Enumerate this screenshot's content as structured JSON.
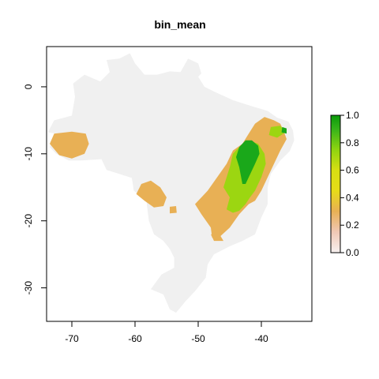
{
  "title": "bin_mean",
  "chart_data": {
    "type": "heatmap",
    "title": "bin_mean",
    "xlabel": "",
    "ylabel": "",
    "xlim": [
      -74,
      -32
    ],
    "ylim": [
      -35,
      6
    ],
    "x_ticks": [
      -70,
      -60,
      -50,
      -40
    ],
    "x_tick_labels": [
      "-70",
      "-60",
      "-50",
      "-40"
    ],
    "y_ticks": [
      0,
      -10,
      -20,
      -30
    ],
    "y_tick_labels": [
      "0",
      "-10",
      "-20",
      "-30"
    ],
    "grid": false,
    "background_region": {
      "name": "Brazil",
      "color": "#f0f0f0",
      "outline": [
        [
          -51.6,
          4.2
        ],
        [
          -50.0,
          3.5
        ],
        [
          -49.5,
          2.0
        ],
        [
          -50.0,
          1.5
        ],
        [
          -49.0,
          0.0
        ],
        [
          -47.5,
          -0.7
        ],
        [
          -44.5,
          -2.0
        ],
        [
          -41.5,
          -2.9
        ],
        [
          -39.0,
          -3.6
        ],
        [
          -37.5,
          -4.6
        ],
        [
          -35.7,
          -5.2
        ],
        [
          -35.0,
          -6.5
        ],
        [
          -34.8,
          -8.0
        ],
        [
          -35.5,
          -9.6
        ],
        [
          -37.0,
          -11.0
        ],
        [
          -38.5,
          -13.0
        ],
        [
          -39.0,
          -15.0
        ],
        [
          -39.0,
          -17.5
        ],
        [
          -40.0,
          -19.5
        ],
        [
          -41.0,
          -22.0
        ],
        [
          -43.0,
          -23.0
        ],
        [
          -45.0,
          -23.8
        ],
        [
          -47.5,
          -25.0
        ],
        [
          -48.5,
          -26.5
        ],
        [
          -48.8,
          -28.5
        ],
        [
          -50.5,
          -30.5
        ],
        [
          -52.0,
          -32.0
        ],
        [
          -53.5,
          -33.7
        ],
        [
          -54.5,
          -33.2
        ],
        [
          -55.5,
          -31.0
        ],
        [
          -57.5,
          -30.2
        ],
        [
          -55.8,
          -28.0
        ],
        [
          -53.8,
          -27.0
        ],
        [
          -53.8,
          -25.5
        ],
        [
          -54.5,
          -24.2
        ],
        [
          -55.5,
          -23.0
        ],
        [
          -57.0,
          -22.0
        ],
        [
          -57.8,
          -20.0
        ],
        [
          -58.2,
          -17.0
        ],
        [
          -60.2,
          -15.5
        ],
        [
          -60.5,
          -13.6
        ],
        [
          -62.5,
          -13.0
        ],
        [
          -64.5,
          -12.4
        ],
        [
          -65.3,
          -10.8
        ],
        [
          -68.5,
          -11.0
        ],
        [
          -70.5,
          -11.0
        ],
        [
          -72.5,
          -10.0
        ],
        [
          -73.5,
          -9.0
        ],
        [
          -72.5,
          -7.0
        ],
        [
          -73.8,
          -6.8
        ],
        [
          -72.8,
          -5.0
        ],
        [
          -70.0,
          -4.3
        ],
        [
          -69.5,
          -1.5
        ],
        [
          -69.8,
          0.5
        ],
        [
          -68.0,
          1.8
        ],
        [
          -65.5,
          0.8
        ],
        [
          -64.0,
          2.2
        ],
        [
          -64.5,
          4.0
        ],
        [
          -62.5,
          4.2
        ],
        [
          -60.8,
          5.0
        ],
        [
          -60.0,
          3.5
        ],
        [
          -58.5,
          1.8
        ],
        [
          -56.5,
          1.8
        ],
        [
          -54.5,
          2.3
        ],
        [
          -52.8,
          2.2
        ]
      ]
    },
    "value_classes": [
      {
        "label": "0.0-0.2",
        "color": "#f2c9b8"
      },
      {
        "label": "0.2-0.4",
        "color": "#e8b055"
      },
      {
        "label": "0.4-0.6",
        "color": "#e5d020"
      },
      {
        "label": "0.6-0.8",
        "color": "#9cd611"
      },
      {
        "label": "0.8-1.0",
        "color": "#1aa81a"
      }
    ],
    "regions": [
      {
        "name": "acre-patch",
        "value": 0.35,
        "polygon": [
          [
            -72.8,
            -7.0
          ],
          [
            -70.0,
            -6.7
          ],
          [
            -67.8,
            -7.0
          ],
          [
            -67.3,
            -8.5
          ],
          [
            -68.0,
            -10.0
          ],
          [
            -70.0,
            -10.7
          ],
          [
            -72.0,
            -10.2
          ],
          [
            -73.5,
            -8.5
          ]
        ]
      },
      {
        "name": "central-west-patch",
        "value": 0.35,
        "polygon": [
          [
            -59.0,
            -14.5
          ],
          [
            -57.5,
            -14.0
          ],
          [
            -56.0,
            -15.0
          ],
          [
            -55.0,
            -16.5
          ],
          [
            -55.5,
            -17.8
          ],
          [
            -57.0,
            -18.0
          ],
          [
            -58.5,
            -17.0
          ],
          [
            -59.8,
            -16.0
          ]
        ]
      },
      {
        "name": "small-patch-1",
        "value": 0.35,
        "polygon": [
          [
            -54.5,
            -17.9
          ],
          [
            -53.5,
            -17.8
          ],
          [
            -53.4,
            -18.8
          ],
          [
            -54.5,
            -18.9
          ]
        ]
      },
      {
        "name": "east-region",
        "value": 0.35,
        "polygon": [
          [
            -44.5,
            -9.5
          ],
          [
            -43.0,
            -8.5
          ],
          [
            -42.0,
            -7.0
          ],
          [
            -41.0,
            -5.5
          ],
          [
            -39.5,
            -4.5
          ],
          [
            -38.0,
            -5.0
          ],
          [
            -37.0,
            -5.5
          ],
          [
            -36.5,
            -6.5
          ],
          [
            -36.0,
            -7.8
          ],
          [
            -37.0,
            -9.5
          ],
          [
            -38.0,
            -11.5
          ],
          [
            -39.0,
            -13.5
          ],
          [
            -40.0,
            -15.5
          ],
          [
            -41.0,
            -17.0
          ],
          [
            -42.0,
            -17.5
          ],
          [
            -43.5,
            -19.0
          ],
          [
            -45.0,
            -21.0
          ],
          [
            -46.5,
            -22.3
          ],
          [
            -47.8,
            -22.5
          ],
          [
            -48.0,
            -21.0
          ],
          [
            -49.5,
            -19.0
          ],
          [
            -50.5,
            -17.5
          ],
          [
            -48.5,
            -15.5
          ],
          [
            -47.0,
            -13.5
          ],
          [
            -45.5,
            -11.5
          ]
        ]
      },
      {
        "name": "east-region-tail",
        "value": 0.35,
        "polygon": [
          [
            -48.0,
            -22.0
          ],
          [
            -46.5,
            -22.2
          ],
          [
            -46.0,
            -23.0
          ],
          [
            -47.5,
            -23.0
          ]
        ]
      },
      {
        "name": "green-belt",
        "value": 0.7,
        "polygon": [
          [
            -44.5,
            -10.0
          ],
          [
            -43.5,
            -9.0
          ],
          [
            -42.0,
            -8.0
          ],
          [
            -40.5,
            -8.5
          ],
          [
            -39.5,
            -10.0
          ],
          [
            -39.3,
            -11.5
          ],
          [
            -40.0,
            -13.5
          ],
          [
            -41.0,
            -15.5
          ],
          [
            -41.8,
            -16.5
          ],
          [
            -42.5,
            -17.5
          ],
          [
            -43.5,
            -18.5
          ],
          [
            -44.5,
            -18.8
          ],
          [
            -45.5,
            -18.3
          ],
          [
            -45.0,
            -16.5
          ],
          [
            -46.0,
            -15.0
          ],
          [
            -45.5,
            -13.5
          ],
          [
            -45.0,
            -12.0
          ]
        ]
      },
      {
        "name": "green-belt-east",
        "value": 0.7,
        "polygon": [
          [
            -38.5,
            -6.0
          ],
          [
            -37.0,
            -5.8
          ],
          [
            -36.2,
            -6.8
          ],
          [
            -37.5,
            -7.6
          ],
          [
            -38.8,
            -7.2
          ]
        ]
      },
      {
        "name": "dark-green-core",
        "value": 0.9,
        "polygon": [
          [
            -43.5,
            -9.0
          ],
          [
            -42.5,
            -8.0
          ],
          [
            -41.5,
            -8.0
          ],
          [
            -40.5,
            -8.8
          ],
          [
            -40.3,
            -10.0
          ],
          [
            -41.0,
            -11.5
          ],
          [
            -41.5,
            -12.5
          ],
          [
            -42.0,
            -13.5
          ],
          [
            -42.5,
            -14.5
          ],
          [
            -43.0,
            -14.5
          ],
          [
            -43.3,
            -13.0
          ],
          [
            -43.5,
            -12.0
          ],
          [
            -44.0,
            -10.5
          ]
        ]
      },
      {
        "name": "dark-green-core-east",
        "value": 0.9,
        "polygon": [
          [
            -36.7,
            -6.0
          ],
          [
            -36.0,
            -6.2
          ],
          [
            -36.0,
            -7.0
          ],
          [
            -36.8,
            -6.8
          ]
        ]
      }
    ],
    "legend": {
      "placement": "right",
      "min": 0.0,
      "max": 1.0,
      "ticks": [
        1.0,
        0.8,
        0.6,
        0.4,
        0.2,
        0.0
      ],
      "tick_labels": [
        "1.0",
        "0.8",
        "0.6",
        "0.4",
        "0.2",
        "0.0"
      ],
      "gradient": [
        {
          "value": 0.0,
          "color": "#f7f0f0"
        },
        {
          "value": 0.15,
          "color": "#f0c8b5"
        },
        {
          "value": 0.3,
          "color": "#e8b055"
        },
        {
          "value": 0.45,
          "color": "#e7dc18"
        },
        {
          "value": 0.6,
          "color": "#d8df12"
        },
        {
          "value": 0.75,
          "color": "#8fd410"
        },
        {
          "value": 0.9,
          "color": "#36b31a"
        },
        {
          "value": 1.0,
          "color": "#0a9a0a"
        }
      ]
    }
  }
}
